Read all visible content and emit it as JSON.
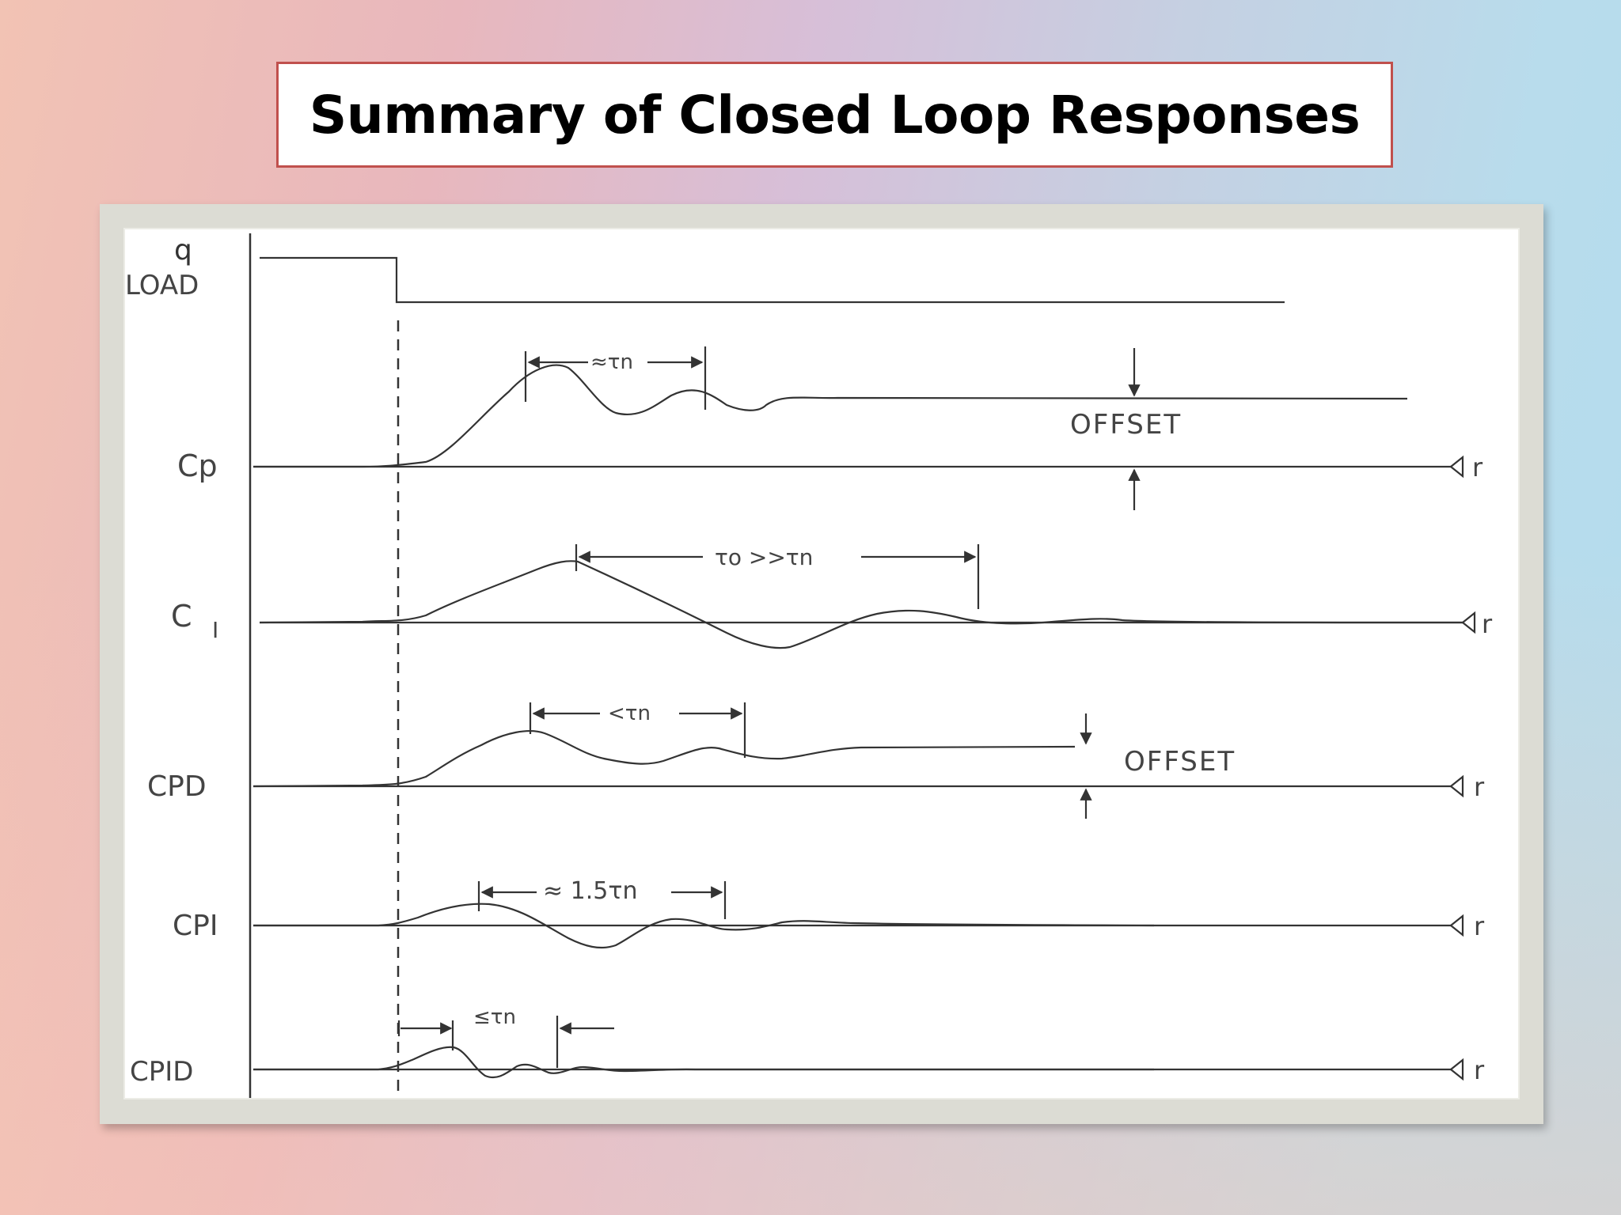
{
  "title": "Summary of Closed Loop Responses",
  "diagram": {
    "load_labels": {
      "q": "q",
      "load": "LOAD"
    },
    "traces": [
      {
        "id": "cp",
        "label": "Cp"
      },
      {
        "id": "ci",
        "label": "C",
        "sub": "I"
      },
      {
        "id": "cpd",
        "label": "CPD"
      },
      {
        "id": "cpi",
        "label": "CPI"
      },
      {
        "id": "cpid",
        "label": "CPID"
      }
    ],
    "setpoint_label": "r",
    "annotations": {
      "cp_period": "≈τn",
      "ci_period": "τo >>τn",
      "cpd_period": "<τn",
      "cpi_period": "≈ 1.5τn",
      "cpid_period": "≤τn",
      "offset": "OFFSET"
    }
  },
  "colors": {
    "title_border": "#c0504d",
    "ink": "#333333"
  }
}
